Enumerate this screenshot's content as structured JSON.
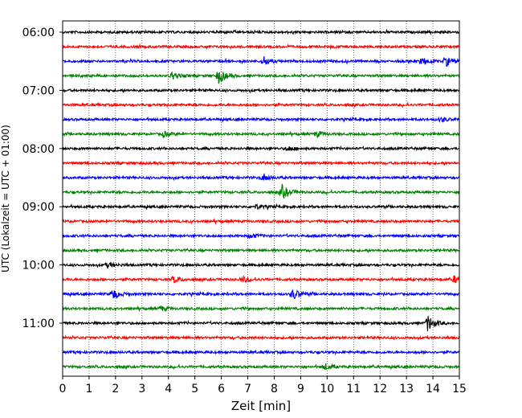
{
  "chart_data": {
    "type": "line",
    "title": "",
    "xlabel": "Zeit  [min]",
    "ylabel": "UTC (Lokalzeit = UTC + 01:00)",
    "xlim": [
      0,
      15
    ],
    "x_ticks": [
      "0",
      "1",
      "2",
      "3",
      "4",
      "5",
      "6",
      "7",
      "8",
      "9",
      "10",
      "11",
      "12",
      "13",
      "14",
      "15"
    ],
    "y_tick_labels": [
      "06:00",
      "07:00",
      "08:00",
      "09:00",
      "10:00",
      "11:00"
    ],
    "trace_interval_min": 15,
    "start_time": "06:00",
    "grid_vertical": true,
    "colors": [
      "#000000",
      "#ff0000",
      "#0000ff",
      "#008000"
    ],
    "traces": [
      {
        "time": "06:00",
        "color": "#000000",
        "events": []
      },
      {
        "time": "06:15",
        "color": "#ff0000",
        "events": []
      },
      {
        "time": "06:30",
        "color": "#0000ff",
        "events": [
          {
            "t": 7.6,
            "amp": 0.5
          },
          {
            "t": 13.6,
            "amp": 0.45
          },
          {
            "t": 14.5,
            "amp": 0.55
          }
        ]
      },
      {
        "time": "06:45",
        "color": "#008000",
        "events": [
          {
            "t": 4.1,
            "amp": 0.45
          },
          {
            "t": 5.9,
            "amp": 0.9
          }
        ]
      },
      {
        "time": "07:00",
        "color": "#000000",
        "events": []
      },
      {
        "time": "07:15",
        "color": "#ff0000",
        "events": []
      },
      {
        "time": "07:30",
        "color": "#0000ff",
        "events": [
          {
            "t": 14.3,
            "amp": 0.3
          }
        ]
      },
      {
        "time": "07:45",
        "color": "#008000",
        "events": [
          {
            "t": 3.8,
            "amp": 0.35
          },
          {
            "t": 9.6,
            "amp": 0.35
          }
        ]
      },
      {
        "time": "08:00",
        "color": "#000000",
        "events": [
          {
            "t": 8.5,
            "amp": 0.3
          }
        ]
      },
      {
        "time": "08:15",
        "color": "#ff0000",
        "events": []
      },
      {
        "time": "08:30",
        "color": "#0000ff",
        "events": [
          {
            "t": 7.6,
            "amp": 0.45
          }
        ]
      },
      {
        "time": "08:45",
        "color": "#008000",
        "events": [
          {
            "t": 8.3,
            "amp": 0.9
          }
        ]
      },
      {
        "time": "09:00",
        "color": "#000000",
        "events": [
          {
            "t": 7.3,
            "amp": 0.3
          }
        ]
      },
      {
        "time": "09:15",
        "color": "#ff0000",
        "events": []
      },
      {
        "time": "09:30",
        "color": "#0000ff",
        "events": [
          {
            "t": 7.1,
            "amp": 0.3
          }
        ]
      },
      {
        "time": "09:45",
        "color": "#008000",
        "events": []
      },
      {
        "time": "10:00",
        "color": "#000000",
        "events": [
          {
            "t": 1.7,
            "amp": 0.3
          }
        ]
      },
      {
        "time": "10:15",
        "color": "#ff0000",
        "events": [
          {
            "t": 4.2,
            "amp": 0.4
          },
          {
            "t": 6.8,
            "amp": 0.35
          },
          {
            "t": 14.8,
            "amp": 0.45
          }
        ]
      },
      {
        "time": "10:30",
        "color": "#0000ff",
        "events": [
          {
            "t": 1.9,
            "amp": 0.65
          },
          {
            "t": 8.7,
            "amp": 0.7
          }
        ]
      },
      {
        "time": "10:45",
        "color": "#008000",
        "events": [
          {
            "t": 3.7,
            "amp": 0.3
          }
        ]
      },
      {
        "time": "11:00",
        "color": "#000000",
        "events": [
          {
            "t": 13.8,
            "amp": 1.0
          }
        ]
      },
      {
        "time": "11:15",
        "color": "#ff0000",
        "events": []
      },
      {
        "time": "11:30",
        "color": "#0000ff",
        "events": []
      },
      {
        "time": "11:45",
        "color": "#008000",
        "events": [
          {
            "t": 9.9,
            "amp": 0.4
          }
        ]
      }
    ]
  }
}
